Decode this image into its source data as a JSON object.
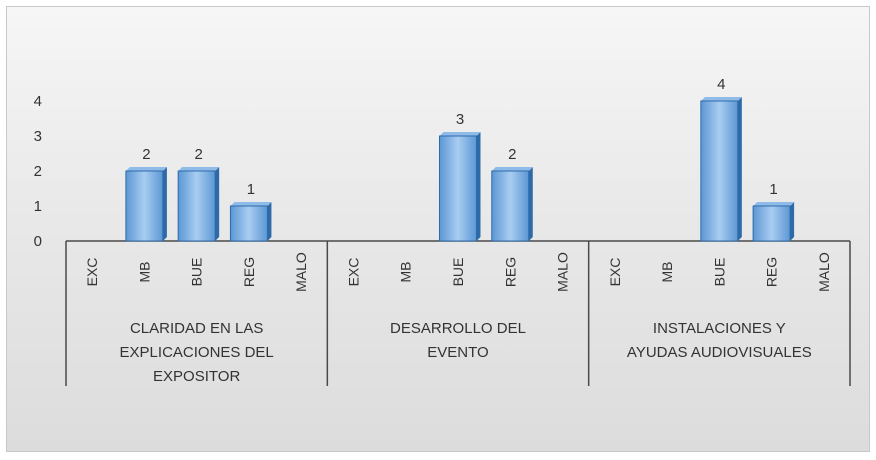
{
  "chart_data": {
    "type": "bar",
    "title": "",
    "xlabel": "",
    "ylabel": "",
    "ylim": [
      0,
      4
    ],
    "yticks": [
      "0",
      "1",
      "2",
      "3",
      "4"
    ],
    "grid": false,
    "legend": "none",
    "bar_color": "#6fa8e0",
    "bar_edge_color": "#2f6aa8",
    "groups": [
      {
        "label_lines": [
          "CLARIDAD EN LAS",
          "EXPLICACIONES DEL",
          "EXPOSITOR"
        ],
        "categories": [
          "EXC",
          "MB",
          "BUE",
          "REG",
          "MALO"
        ],
        "values": [
          0,
          2,
          2,
          1,
          0
        ],
        "labels": [
          "",
          "2",
          "2",
          "1",
          ""
        ]
      },
      {
        "label_lines": [
          "DESARROLLO DEL",
          "EVENTO"
        ],
        "categories": [
          "EXC",
          "MB",
          "BUE",
          "REG",
          "MALO"
        ],
        "values": [
          0,
          0,
          3,
          2,
          0
        ],
        "labels": [
          "",
          "",
          "3",
          "2",
          ""
        ]
      },
      {
        "label_lines": [
          "INSTALACIONES Y",
          "AYUDAS AUDIOVISUALES"
        ],
        "categories": [
          "EXC",
          "MB",
          "BUE",
          "REG",
          "MALO"
        ],
        "values": [
          0,
          0,
          4,
          1,
          0
        ],
        "labels": [
          "",
          "",
          "4",
          "1",
          ""
        ]
      }
    ]
  }
}
